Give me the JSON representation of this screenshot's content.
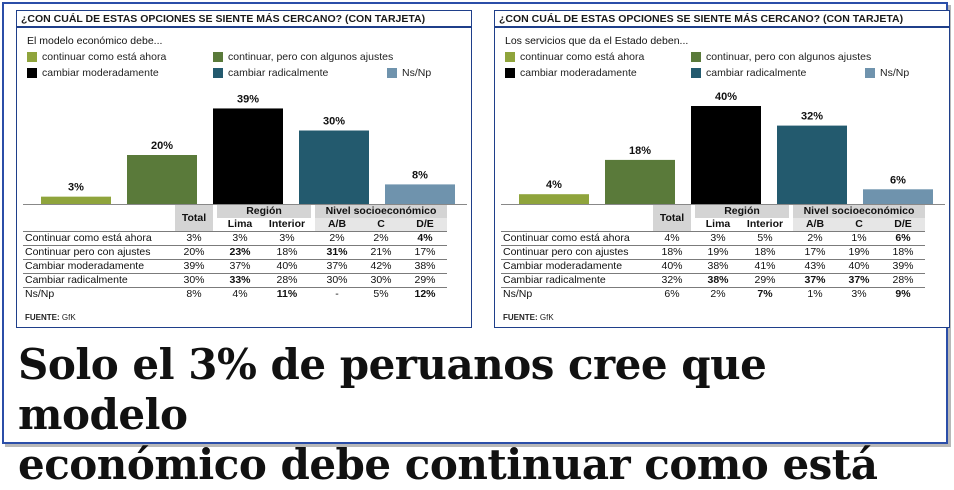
{
  "headline": {
    "line1": "Solo el 3% de peruanos cree que modelo",
    "line2": "económico debe continuar como está"
  },
  "colors": {
    "continuar_como_esta": "#8fa43c",
    "continuar_ajustes": "#5a7a3a",
    "cambiar_moderadamente": "#000000",
    "cambiar_radicalmente": "#235a6e",
    "ns_np": "#6f93ad",
    "border": "#1f3f8a"
  },
  "panels": [
    {
      "question": "¿CON CUÁL DE ESTAS OPCIONES SE SIENTE MÁS CERCANO? (CON TARJETA)",
      "subtitle": "El modelo económico debe...",
      "legend": [
        "continuar como está ahora",
        "continuar, pero con algunos ajustes",
        "cambiar moderadamente",
        "cambiar radicalmente",
        "Ns/Np"
      ],
      "table": {
        "col_total": "Total",
        "group_region": "Región",
        "group_nse": "Nivel socioeconómico",
        "cols": [
          "Lima",
          "Interior",
          "A/B",
          "C",
          "D/E"
        ],
        "rows": [
          {
            "label": "Continuar como está ahora",
            "values": [
              "3%",
              "3%",
              "3%",
              "2%",
              "2%",
              "4%"
            ]
          },
          {
            "label": "Continuar pero con ajustes",
            "values": [
              "20%",
              "23%",
              "18%",
              "31%",
              "21%",
              "17%"
            ]
          },
          {
            "label": "Cambiar moderadamente",
            "values": [
              "39%",
              "37%",
              "40%",
              "37%",
              "42%",
              "38%"
            ]
          },
          {
            "label": "Cambiar radicalmente",
            "values": [
              "30%",
              "33%",
              "28%",
              "30%",
              "30%",
              "29%"
            ]
          },
          {
            "label": "Ns/Np",
            "values": [
              "8%",
              "4%",
              "11%",
              "-",
              "5%",
              "12%"
            ]
          }
        ]
      },
      "source_label": "FUENTE:",
      "source_value": "GfK"
    },
    {
      "question": "¿CON CUÁL DE ESTAS OPCIONES SE SIENTE MÁS CERCANO? (CON TARJETA)",
      "subtitle": "Los servicios que da el Estado deben...",
      "legend": [
        "continuar como está ahora",
        "continuar, pero con algunos ajustes",
        "cambiar moderadamente",
        "cambiar radicalmente",
        "Ns/Np"
      ],
      "table": {
        "col_total": "Total",
        "group_region": "Región",
        "group_nse": "Nivel socioeconómico",
        "cols": [
          "Lima",
          "Interior",
          "A/B",
          "C",
          "D/E"
        ],
        "rows": [
          {
            "label": "Continuar como está ahora",
            "values": [
              "4%",
              "3%",
              "5%",
              "2%",
              "1%",
              "6%"
            ]
          },
          {
            "label": "Continuar pero con ajustes",
            "values": [
              "18%",
              "19%",
              "18%",
              "17%",
              "19%",
              "18%"
            ]
          },
          {
            "label": "Cambiar moderadamente",
            "values": [
              "40%",
              "38%",
              "41%",
              "43%",
              "40%",
              "39%"
            ]
          },
          {
            "label": "Cambiar radicalmente",
            "values": [
              "32%",
              "38%",
              "29%",
              "37%",
              "37%",
              "28%"
            ]
          },
          {
            "label": "Ns/Np",
            "values": [
              "6%",
              "2%",
              "7%",
              "1%",
              "3%",
              "9%"
            ]
          }
        ]
      },
      "source_label": "FUENTE:",
      "source_value": "GfK"
    }
  ],
  "chart_data": [
    {
      "type": "bar",
      "title": "El modelo económico debe...",
      "categories": [
        "continuar como está ahora",
        "continuar, pero con algunos ajustes",
        "cambiar moderadamente",
        "cambiar radicalmente",
        "Ns/Np"
      ],
      "values": [
        3,
        20,
        39,
        30,
        8
      ],
      "value_labels": [
        "3%",
        "20%",
        "39%",
        "30%",
        "8%"
      ],
      "ylim": [
        0,
        40
      ],
      "grid": false,
      "legend": "top"
    },
    {
      "type": "bar",
      "title": "Los servicios que da el Estado deben...",
      "categories": [
        "continuar como está ahora",
        "continuar, pero con algunos ajustes",
        "cambiar moderadamente",
        "cambiar radicalmente",
        "Ns/Np"
      ],
      "values": [
        4,
        18,
        40,
        32,
        6
      ],
      "value_labels": [
        "4%",
        "18%",
        "40%",
        "32%",
        "6%"
      ],
      "ylim": [
        0,
        40
      ],
      "grid": false,
      "legend": "top"
    }
  ]
}
